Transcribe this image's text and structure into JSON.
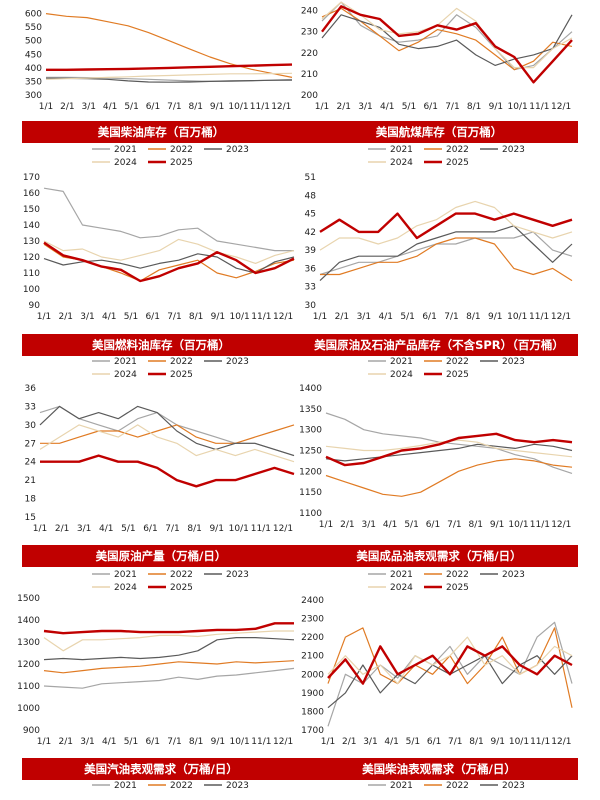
{
  "colors": {
    "2021": "#a6a6a6",
    "2022": "#e07b24",
    "2023": "#5a5a5a",
    "2024": "#e8d4ae",
    "2025": "#c00000",
    "band": "#c00000"
  },
  "legend_years": [
    "2021",
    "2022",
    "2023",
    "2024",
    "2025"
  ],
  "x_ticks": [
    "1/1",
    "2/1",
    "3/1",
    "4/1",
    "5/1",
    "6/1",
    "7/1",
    "8/1",
    "9/1",
    "10/1",
    "11/1",
    "12/1"
  ],
  "chart_data": [
    {
      "id": "c1",
      "type": "line",
      "title": "",
      "ylim": [
        300,
        650
      ],
      "yticks": [
        "300",
        "350",
        "400",
        "450",
        "500",
        "550",
        "600"
      ],
      "series": [
        {
          "name": "2021",
          "values": [
            365,
            365,
            364,
            362,
            360,
            358,
            355,
            352,
            350,
            350,
            352,
            355,
            357
          ]
        },
        {
          "name": "2022",
          "values": [
            600,
            590,
            585,
            570,
            555,
            530,
            500,
            470,
            440,
            415,
            395,
            380,
            365
          ]
        },
        {
          "name": "2023",
          "values": [
            362,
            361,
            360,
            358,
            352,
            348,
            347,
            348,
            350,
            352,
            353,
            354,
            355
          ]
        },
        {
          "name": "2024",
          "values": [
            358,
            360,
            362,
            365,
            367,
            370,
            372,
            374,
            376,
            378,
            378,
            379,
            380
          ]
        },
        {
          "name": "2025",
          "values": [
            393,
            393,
            394,
            395,
            396,
            398,
            400,
            402,
            404,
            406,
            408,
            410,
            412
          ]
        }
      ]
    },
    {
      "id": "c2",
      "type": "line",
      "title": "",
      "ylim": [
        200,
        245
      ],
      "yticks": [
        "200",
        "210",
        "220",
        "230",
        "240"
      ],
      "series": [
        {
          "name": "2021",
          "values": [
            235,
            244,
            233,
            228,
            225,
            226,
            228,
            238,
            232,
            222,
            212,
            214,
            222,
            230
          ]
        },
        {
          "name": "2022",
          "values": [
            237,
            241,
            235,
            228,
            221,
            225,
            231,
            229,
            226,
            219,
            212,
            216,
            225,
            223
          ]
        },
        {
          "name": "2023",
          "values": [
            227,
            238,
            235,
            232,
            224,
            222,
            223,
            226,
            219,
            214,
            217,
            219,
            222,
            238
          ]
        },
        {
          "name": "2024",
          "values": [
            236,
            244,
            238,
            231,
            229,
            230,
            233,
            241,
            235,
            222,
            213,
            213,
            222,
            227
          ]
        },
        {
          "name": "2025",
          "values": [
            230,
            242,
            238,
            236,
            228,
            229,
            233,
            231,
            234,
            223,
            218,
            206,
            216,
            226
          ]
        }
      ]
    },
    {
      "id": "c3",
      "type": "line",
      "title": "美国柴油库存（百万桶）",
      "ylim": [
        90,
        170
      ],
      "yticks": [
        "90",
        "100",
        "110",
        "120",
        "130",
        "140",
        "150",
        "160",
        "170"
      ],
      "series": [
        {
          "name": "2021",
          "values": [
            163,
            161,
            140,
            138,
            136,
            132,
            133,
            137,
            138,
            130,
            128,
            126,
            124,
            124
          ]
        },
        {
          "name": "2022",
          "values": [
            128,
            120,
            118,
            114,
            110,
            105,
            112,
            115,
            118,
            110,
            107,
            111,
            116,
            118
          ]
        },
        {
          "name": "2023",
          "values": [
            119,
            115,
            117,
            118,
            116,
            113,
            116,
            118,
            122,
            120,
            113,
            110,
            117,
            120
          ]
        },
        {
          "name": "2024",
          "values": [
            130,
            124,
            125,
            120,
            118,
            121,
            124,
            131,
            128,
            123,
            120,
            116,
            121,
            124
          ]
        },
        {
          "name": "2025",
          "values": [
            129,
            121,
            118,
            114,
            112,
            105,
            108,
            113,
            116,
            123,
            118,
            110,
            113,
            119
          ]
        }
      ]
    },
    {
      "id": "c4",
      "type": "line",
      "title": "美国航煤库存（百万桶）",
      "ylim": [
        30,
        51
      ],
      "yticks": [
        "30",
        "33",
        "36",
        "39",
        "42",
        "45",
        "48",
        "51"
      ],
      "series": [
        {
          "name": "2021",
          "values": [
            35,
            36,
            37,
            37,
            38,
            39,
            40,
            40,
            41,
            41,
            41,
            42,
            39,
            38
          ]
        },
        {
          "name": "2022",
          "values": [
            35,
            35,
            36,
            37,
            37,
            38,
            40,
            41,
            41,
            40,
            36,
            35,
            36,
            34
          ]
        },
        {
          "name": "2023",
          "values": [
            34,
            37,
            38,
            38,
            38,
            40,
            41,
            42,
            42,
            42,
            43,
            40,
            37,
            40
          ]
        },
        {
          "name": "2024",
          "values": [
            39,
            41,
            41,
            40,
            41,
            43,
            44,
            46,
            47,
            46,
            43,
            42,
            41,
            42
          ]
        },
        {
          "name": "2025",
          "values": [
            42,
            44,
            42,
            42,
            45,
            41,
            43,
            45,
            45,
            44,
            45,
            44,
            43,
            44
          ]
        }
      ]
    },
    {
      "id": "c5",
      "type": "line",
      "title": "美国燃料油库存（百万桶）",
      "ylim": [
        15,
        36
      ],
      "yticks": [
        "15",
        "18",
        "21",
        "24",
        "27",
        "30",
        "33",
        "36"
      ],
      "series": [
        {
          "name": "2021",
          "values": [
            32,
            33,
            31,
            30,
            29,
            31,
            32,
            30,
            29,
            28,
            27,
            27,
            26,
            25
          ]
        },
        {
          "name": "2022",
          "values": [
            27,
            27,
            28,
            29,
            29,
            28,
            29,
            30,
            28,
            27,
            27,
            28,
            29,
            30
          ]
        },
        {
          "name": "2023",
          "values": [
            30,
            33,
            31,
            32,
            31,
            33,
            32,
            29,
            27,
            26,
            27,
            27,
            26,
            25
          ]
        },
        {
          "name": "2024",
          "values": [
            26,
            28,
            30,
            29,
            28,
            30,
            28,
            27,
            25,
            26,
            25,
            26,
            25,
            24
          ]
        },
        {
          "name": "2025",
          "values": [
            24,
            24,
            24,
            25,
            24,
            24,
            23,
            21,
            20,
            21,
            21,
            22,
            23,
            22
          ]
        }
      ]
    },
    {
      "id": "c6",
      "type": "line",
      "title": "美国原油及石油产品库存（不含SPR）（百万桶）",
      "ylim": [
        1100,
        1400
      ],
      "yticks": [
        "1100",
        "1150",
        "1200",
        "1250",
        "1300",
        "1350",
        "1400"
      ],
      "series": [
        {
          "name": "2021",
          "values": [
            1340,
            1325,
            1300,
            1290,
            1285,
            1280,
            1270,
            1265,
            1260,
            1255,
            1240,
            1230,
            1210,
            1195
          ]
        },
        {
          "name": "2022",
          "values": [
            1190,
            1175,
            1160,
            1145,
            1140,
            1150,
            1175,
            1200,
            1215,
            1225,
            1230,
            1225,
            1215,
            1210
          ]
        },
        {
          "name": "2023",
          "values": [
            1230,
            1225,
            1230,
            1235,
            1240,
            1245,
            1250,
            1255,
            1265,
            1260,
            1255,
            1265,
            1260,
            1250
          ]
        },
        {
          "name": "2024",
          "values": [
            1260,
            1255,
            1250,
            1250,
            1255,
            1262,
            1270,
            1275,
            1270,
            1255,
            1250,
            1245,
            1240,
            1235
          ]
        },
        {
          "name": "2025",
          "values": [
            1235,
            1215,
            1220,
            1235,
            1250,
            1255,
            1265,
            1280,
            1285,
            1290,
            1275,
            1270,
            1275,
            1270
          ]
        }
      ]
    },
    {
      "id": "c7",
      "type": "line",
      "title": "美国原油产量（万桶/日）",
      "ylim": [
        900,
        1500
      ],
      "yticks": [
        "900",
        "1000",
        "1100",
        "1200",
        "1300",
        "1400",
        "1500"
      ],
      "series": [
        {
          "name": "2021",
          "values": [
            1100,
            1095,
            1090,
            1110,
            1115,
            1120,
            1125,
            1140,
            1130,
            1145,
            1150,
            1160,
            1170,
            1180
          ]
        },
        {
          "name": "2022",
          "values": [
            1170,
            1160,
            1170,
            1180,
            1185,
            1190,
            1200,
            1210,
            1205,
            1200,
            1210,
            1205,
            1210,
            1215
          ]
        },
        {
          "name": "2023",
          "values": [
            1220,
            1225,
            1220,
            1225,
            1230,
            1225,
            1230,
            1240,
            1260,
            1310,
            1320,
            1320,
            1315,
            1310
          ]
        },
        {
          "name": "2024",
          "values": [
            1320,
            1260,
            1310,
            1310,
            1315,
            1320,
            1330,
            1330,
            1325,
            1335,
            1340,
            1345,
            1350,
            1350
          ]
        },
        {
          "name": "2025",
          "values": [
            1350,
            1340,
            1345,
            1350,
            1350,
            1345,
            1345,
            1345,
            1350,
            1355,
            1355,
            1360,
            1385,
            1385
          ]
        }
      ]
    },
    {
      "id": "c8",
      "type": "line",
      "title": "美国成品油表观需求（万桶/日）",
      "ylim": [
        1700,
        2400
      ],
      "yticks": [
        "1700",
        "1800",
        "1900",
        "2000",
        "2100",
        "2200",
        "2300",
        "2400"
      ],
      "series": [
        {
          "name": "2021",
          "values": [
            1720,
            2000,
            1950,
            2050,
            1980,
            2100,
            2050,
            2150,
            2000,
            2100,
            2050,
            2000,
            2200,
            2280,
            1950
          ]
        },
        {
          "name": "2022",
          "values": [
            1950,
            2200,
            2250,
            2000,
            1950,
            2050,
            2000,
            2100,
            1950,
            2050,
            2200,
            2000,
            2050,
            2250,
            1820
          ]
        },
        {
          "name": "2023",
          "values": [
            1820,
            1900,
            2050,
            1900,
            2000,
            1950,
            2050,
            2000,
            2050,
            2100,
            1950,
            2050,
            2100,
            2000,
            2100
          ]
        },
        {
          "name": "2024",
          "values": [
            2000,
            2100,
            2000,
            2050,
            1950,
            2100,
            2050,
            2100,
            2200,
            2050,
            2100,
            2000,
            2050,
            2150,
            2100
          ]
        },
        {
          "name": "2025",
          "values": [
            1980,
            2080,
            1950,
            2150,
            2000,
            2050,
            2100,
            2000,
            2150,
            2100,
            2150,
            2050,
            2000,
            2100,
            2050
          ]
        }
      ]
    }
  ],
  "bands": [
    {
      "left": "美国柴油库存（百万桶）",
      "right": "美国航煤库存（百万桶）"
    },
    {
      "left": "美国燃料油库存（百万桶）",
      "right": "美国原油及石油产品库存（不含SPR）（百万桶）"
    },
    {
      "left": "美国原油产量（万桶/日）",
      "right": "美国成品油表观需求（万桶/日）"
    },
    {
      "left": "美国汽油表观需求（万桶/日）",
      "right": "美国柴油表观需求（万桶/日）"
    }
  ]
}
